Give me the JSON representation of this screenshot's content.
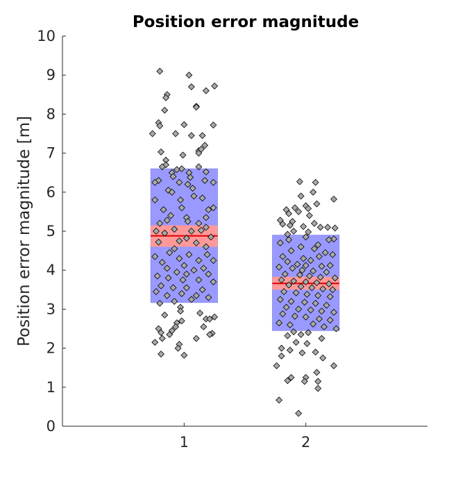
{
  "chart_data": {
    "type": "scatter",
    "title": "Position error magnitude",
    "xlabel": "",
    "ylabel": "Position error magnitude [m]",
    "xlim": [
      0,
      3
    ],
    "ylim": [
      0,
      10
    ],
    "x_ticks": [
      "1",
      "2"
    ],
    "y_ticks": [
      "0",
      "1",
      "2",
      "3",
      "4",
      "5",
      "6",
      "7",
      "8",
      "9",
      "10"
    ],
    "grid": false,
    "colors": {
      "box_fill": "#9999ff",
      "ci_fill": "#ff9999",
      "mean_line": "#e00000",
      "point_fill": "#a9a9a9",
      "point_edge": "#000000"
    },
    "groups": [
      {
        "category": "1",
        "mean": 4.88,
        "ci": [
          4.6,
          5.15
        ],
        "box": [
          3.17,
          6.6
        ],
        "points": [
          [
            0.8,
            9.1
          ],
          [
            1.04,
            9.0
          ],
          [
            1.06,
            8.7
          ],
          [
            1.25,
            8.72
          ],
          [
            0.86,
            8.5
          ],
          [
            1.18,
            8.6
          ],
          [
            0.85,
            8.42
          ],
          [
            1.1,
            8.2
          ],
          [
            1.1,
            8.18
          ],
          [
            0.84,
            8.1
          ],
          [
            0.79,
            7.78
          ],
          [
            0.8,
            7.7
          ],
          [
            1.0,
            7.73
          ],
          [
            1.24,
            7.72
          ],
          [
            0.74,
            7.5
          ],
          [
            0.93,
            7.5
          ],
          [
            1.06,
            7.45
          ],
          [
            1.15,
            7.45
          ],
          [
            1.17,
            7.2
          ],
          [
            1.12,
            7.06
          ],
          [
            1.14,
            7.1
          ],
          [
            0.99,
            6.95
          ],
          [
            0.81,
            7.03
          ],
          [
            1.12,
            7.0
          ],
          [
            0.85,
            6.82
          ],
          [
            0.85,
            6.7
          ],
          [
            0.82,
            6.65
          ],
          [
            0.98,
            6.6
          ],
          [
            1.12,
            6.65
          ],
          [
            0.94,
            6.58
          ],
          [
            0.9,
            6.5
          ],
          [
            1.04,
            6.5
          ],
          [
            1.18,
            6.52
          ],
          [
            0.79,
            6.3
          ],
          [
            0.76,
            6.25
          ],
          [
            0.91,
            6.4
          ],
          [
            1.05,
            6.38
          ],
          [
            1.17,
            6.3
          ],
          [
            1.24,
            6.25
          ],
          [
            0.96,
            6.25
          ],
          [
            1.03,
            6.2
          ],
          [
            1.07,
            6.1
          ],
          [
            0.87,
            6.05
          ],
          [
            0.9,
            6.0
          ],
          [
            1.08,
            5.9
          ],
          [
            0.76,
            5.8
          ],
          [
            0.97,
            5.8
          ],
          [
            1.15,
            5.85
          ],
          [
            0.83,
            5.55
          ],
          [
            0.98,
            5.6
          ],
          [
            1.2,
            5.55
          ],
          [
            1.24,
            5.6
          ],
          [
            0.89,
            5.4
          ],
          [
            1.02,
            5.35
          ],
          [
            1.18,
            5.35
          ],
          [
            0.8,
            5.2
          ],
          [
            0.86,
            5.28
          ],
          [
            1.03,
            5.25
          ],
          [
            1.12,
            5.2
          ],
          [
            1.18,
            5.1
          ],
          [
            0.77,
            5.0
          ],
          [
            0.92,
            5.05
          ],
          [
            1.06,
            5.0
          ],
          [
            1.14,
            5.02
          ],
          [
            0.84,
            4.95
          ],
          [
            1.02,
            4.82
          ],
          [
            1.22,
            4.85
          ],
          [
            0.79,
            4.72
          ],
          [
            0.96,
            4.75
          ],
          [
            1.1,
            4.7
          ],
          [
            1.18,
            4.6
          ],
          [
            0.92,
            4.55
          ],
          [
            0.88,
            4.45
          ],
          [
            1.04,
            4.4
          ],
          [
            1.19,
            4.4
          ],
          [
            0.76,
            4.35
          ],
          [
            0.82,
            4.2
          ],
          [
            0.96,
            4.3
          ],
          [
            1.12,
            4.25
          ],
          [
            1.24,
            4.25
          ],
          [
            0.86,
            4.05
          ],
          [
            1.0,
            4.12
          ],
          [
            1.08,
            4.0
          ],
          [
            1.16,
            4.05
          ],
          [
            0.94,
            3.95
          ],
          [
            1.02,
            3.9
          ],
          [
            1.2,
            3.9
          ],
          [
            0.78,
            3.85
          ],
          [
            0.87,
            3.8
          ],
          [
            0.99,
            3.75
          ],
          [
            1.12,
            3.75
          ],
          [
            1.24,
            3.7
          ],
          [
            0.81,
            3.6
          ],
          [
            0.91,
            3.55
          ],
          [
            1.02,
            3.55
          ],
          [
            1.15,
            3.5
          ],
          [
            0.77,
            3.45
          ],
          [
            0.86,
            3.35
          ],
          [
            0.98,
            3.4
          ],
          [
            1.1,
            3.35
          ],
          [
            1.2,
            3.3
          ],
          [
            0.8,
            3.15
          ],
          [
            0.92,
            3.2
          ],
          [
            1.06,
            3.25
          ],
          [
            0.97,
            3.05
          ],
          [
            0.97,
            2.95
          ],
          [
            1.13,
            2.9
          ],
          [
            0.84,
            2.85
          ],
          [
            1.25,
            2.8
          ],
          [
            1.18,
            2.75
          ],
          [
            1.21,
            2.75
          ],
          [
            0.98,
            2.7
          ],
          [
            0.94,
            2.65
          ],
          [
            0.93,
            2.55
          ],
          [
            0.79,
            2.5
          ],
          [
            0.81,
            2.4
          ],
          [
            1.16,
            2.55
          ],
          [
            0.9,
            2.45
          ],
          [
            0.88,
            2.35
          ],
          [
            0.82,
            2.25
          ],
          [
            1.23,
            2.38
          ],
          [
            1.21,
            2.35
          ],
          [
            1.1,
            2.25
          ],
          [
            0.76,
            2.15
          ],
          [
            0.96,
            2.1
          ],
          [
            0.95,
            2.0
          ],
          [
            0.81,
            1.85
          ],
          [
            1.0,
            1.82
          ]
        ]
      },
      {
        "category": "2",
        "mean": 3.66,
        "ci": [
          3.5,
          3.83
        ],
        "box": [
          2.45,
          4.9
        ],
        "points": [
          [
            1.95,
            6.27
          ],
          [
            2.08,
            6.25
          ],
          [
            2.06,
            6.0
          ],
          [
            1.96,
            5.9
          ],
          [
            2.23,
            5.82
          ],
          [
            2.09,
            5.7
          ],
          [
            2.0,
            5.65
          ],
          [
            1.91,
            5.6
          ],
          [
            2.02,
            5.58
          ],
          [
            1.84,
            5.55
          ],
          [
            1.86,
            5.45
          ],
          [
            1.94,
            5.5
          ],
          [
            2.03,
            5.4
          ],
          [
            1.79,
            5.28
          ],
          [
            1.89,
            5.25
          ],
          [
            2.07,
            5.2
          ],
          [
            1.81,
            5.18
          ],
          [
            1.87,
            5.15
          ],
          [
            1.98,
            5.12
          ],
          [
            2.12,
            5.1
          ],
          [
            2.18,
            5.1
          ],
          [
            2.24,
            5.08
          ],
          [
            1.9,
            5.0
          ],
          [
            2.02,
            4.98
          ],
          [
            1.85,
            4.92
          ],
          [
            2.0,
            4.85
          ],
          [
            2.23,
            4.8
          ],
          [
            1.86,
            4.78
          ],
          [
            2.19,
            4.78
          ],
          [
            1.79,
            4.7
          ],
          [
            2.1,
            4.65
          ],
          [
            1.96,
            4.6
          ],
          [
            2.07,
            4.55
          ],
          [
            1.88,
            4.5
          ],
          [
            2.16,
            4.45
          ],
          [
            2.22,
            4.4
          ],
          [
            1.81,
            4.35
          ],
          [
            1.98,
            4.3
          ],
          [
            2.11,
            4.35
          ],
          [
            1.85,
            4.22
          ],
          [
            2.04,
            4.25
          ],
          [
            1.93,
            4.15
          ],
          [
            2.0,
            4.12
          ],
          [
            2.13,
            4.1
          ],
          [
            2.2,
            4.12
          ],
          [
            1.78,
            4.08
          ],
          [
            1.89,
            4.05
          ],
          [
            1.97,
            4.0
          ],
          [
            2.06,
            3.98
          ],
          [
            2.17,
            3.95
          ],
          [
            1.83,
            3.9
          ],
          [
            1.95,
            3.88
          ],
          [
            2.03,
            3.85
          ],
          [
            2.12,
            3.82
          ],
          [
            2.24,
            3.8
          ],
          [
            1.8,
            3.75
          ],
          [
            1.9,
            3.72
          ],
          [
            2.0,
            3.7
          ],
          [
            2.09,
            3.68
          ],
          [
            2.19,
            3.65
          ],
          [
            1.86,
            3.62
          ],
          [
            1.96,
            3.58
          ],
          [
            2.05,
            3.55
          ],
          [
            2.14,
            3.52
          ],
          [
            2.22,
            3.5
          ],
          [
            1.82,
            3.45
          ],
          [
            1.92,
            3.42
          ],
          [
            2.01,
            3.38
          ],
          [
            2.1,
            3.35
          ],
          [
            2.2,
            3.32
          ],
          [
            1.79,
            3.25
          ],
          [
            1.88,
            3.2
          ],
          [
            1.99,
            3.18
          ],
          [
            2.08,
            3.15
          ],
          [
            2.17,
            3.1
          ],
          [
            1.84,
            3.05
          ],
          [
            1.94,
            3.0
          ],
          [
            2.04,
            2.98
          ],
          [
            2.13,
            2.95
          ],
          [
            2.23,
            2.92
          ],
          [
            1.81,
            2.88
          ],
          [
            1.91,
            2.82
          ],
          [
            2.0,
            2.8
          ],
          [
            2.11,
            2.75
          ],
          [
            2.2,
            2.72
          ],
          [
            1.78,
            2.65
          ],
          [
            1.87,
            2.6
          ],
          [
            2.06,
            2.62
          ],
          [
            2.15,
            2.55
          ],
          [
            2.25,
            2.5
          ],
          [
            1.9,
            2.42
          ],
          [
            2.02,
            2.4
          ],
          [
            1.85,
            2.32
          ],
          [
            1.96,
            2.35
          ],
          [
            2.13,
            2.25
          ],
          [
            1.92,
            2.15
          ],
          [
            2.01,
            2.12
          ],
          [
            1.8,
            2.0
          ],
          [
            1.87,
            1.95
          ],
          [
            2.08,
            1.9
          ],
          [
            1.97,
            1.88
          ],
          [
            1.8,
            1.8
          ],
          [
            2.14,
            1.75
          ],
          [
            2.23,
            1.55
          ],
          [
            1.76,
            1.55
          ],
          [
            2.09,
            1.38
          ],
          [
            1.88,
            1.25
          ],
          [
            1.85,
            1.17
          ],
          [
            2.0,
            1.25
          ],
          [
            1.99,
            1.15
          ],
          [
            2.1,
            1.15
          ],
          [
            2.1,
            0.97
          ],
          [
            1.78,
            0.67
          ],
          [
            1.94,
            0.33
          ]
        ]
      }
    ]
  }
}
